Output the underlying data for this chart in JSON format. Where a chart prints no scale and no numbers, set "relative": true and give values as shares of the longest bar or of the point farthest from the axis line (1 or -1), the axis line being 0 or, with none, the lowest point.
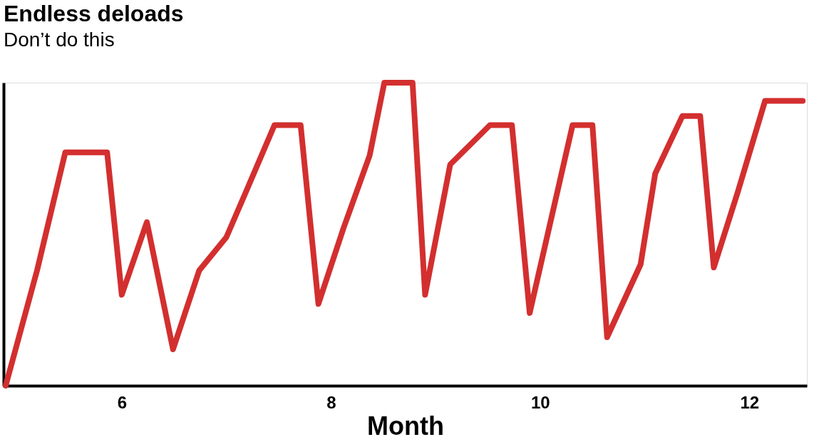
{
  "chart_data": {
    "type": "line",
    "title": "Endless deloads",
    "subtitle": "Don’t do this",
    "xlabel": "Month",
    "relative": true,
    "xlim": [
      4.87,
      12.55
    ],
    "xticks": [
      6,
      8,
      10,
      12
    ],
    "grid": false,
    "legend": false,
    "line_style": "solid",
    "tick_labels": "x",
    "x": [
      4.89,
      5.19,
      5.46,
      5.86,
      6.0,
      6.24,
      6.49,
      6.74,
      7.0,
      7.2,
      7.46,
      7.71,
      7.88,
      8.12,
      8.37,
      8.51,
      8.78,
      8.9,
      9.14,
      9.52,
      9.73,
      9.9,
      10.31,
      10.5,
      10.64,
      10.96,
      11.1,
      11.36,
      11.53,
      11.66,
      11.89,
      12.15,
      12.51
    ],
    "series": [
      {
        "color": "#d32f2f",
        "values": [
          0,
          0.38,
          0.77,
          0.77,
          0.3,
          0.54,
          0.12,
          0.38,
          0.49,
          0.65,
          0.86,
          0.86,
          0.27,
          0.52,
          0.76,
          1.0,
          1.0,
          0.3,
          0.73,
          0.86,
          0.86,
          0.24,
          0.86,
          0.86,
          0.16,
          0.4,
          0.7,
          0.89,
          0.89,
          0.39,
          0.64,
          0.94,
          0.94
        ]
      }
    ]
  }
}
